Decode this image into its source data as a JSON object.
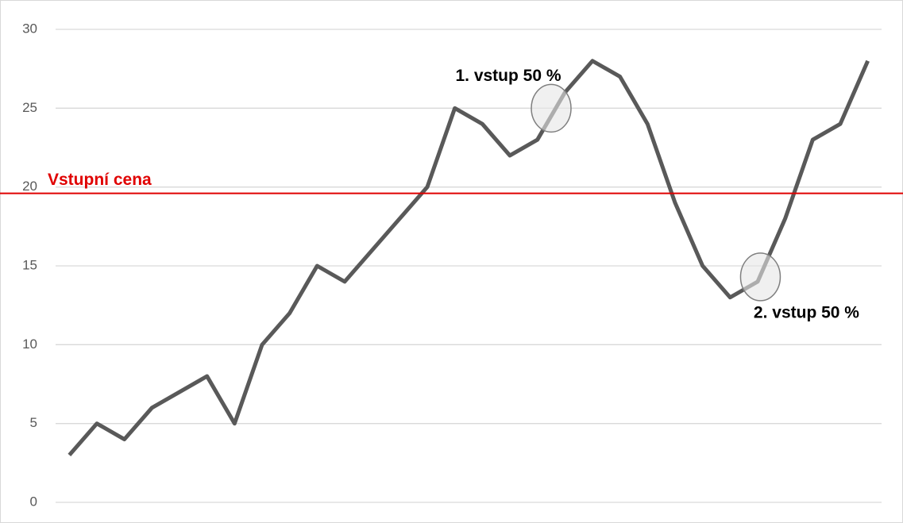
{
  "chart_data": {
    "type": "line",
    "categories": [
      null,
      null,
      null,
      null,
      null,
      null,
      null,
      null,
      null,
      null,
      null,
      null,
      null,
      null,
      null,
      null,
      null,
      null,
      null,
      null,
      null,
      null,
      null,
      null,
      null,
      null,
      null,
      null,
      null,
      null
    ],
    "series": [
      {
        "color": "#595959",
        "values": [
          3,
          5,
          4,
          6,
          7,
          8,
          5,
          10,
          12,
          15,
          14,
          16,
          18,
          20,
          25,
          24,
          22,
          23,
          26,
          28,
          27,
          24,
          19,
          15,
          13,
          14,
          18,
          23,
          24,
          28
        ]
      }
    ],
    "ylim": [
      0,
      30
    ],
    "yticks": [
      0,
      5,
      10,
      15,
      20,
      25,
      30
    ],
    "grid": true,
    "reference_line": {
      "label": "Vstupní cena",
      "value": 19.6,
      "color": "#e00000"
    },
    "annotations": [
      {
        "text": "1. vstup 50 %",
        "x": 17.5,
        "y": 25
      },
      {
        "text": "2. vstup 50 %",
        "x": 25.1,
        "y": 14.3
      }
    ]
  }
}
